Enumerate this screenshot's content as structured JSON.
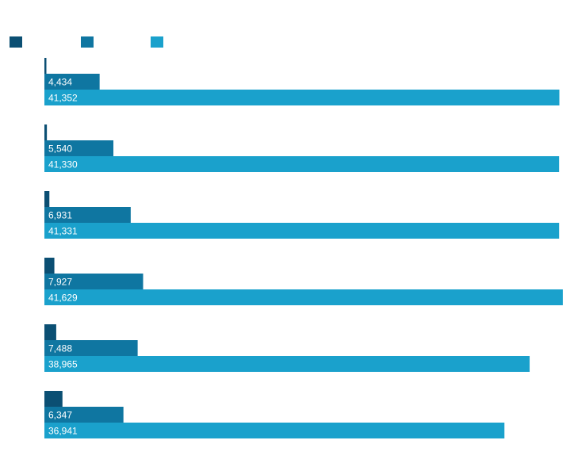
{
  "chart_data": {
    "type": "bar",
    "orientation": "horizontal",
    "title": "",
    "xlabel": "",
    "ylabel": "",
    "categories": [
      "",
      "",
      "",
      "",
      "",
      ""
    ],
    "series": [
      {
        "color": "#0b4f73",
        "values": [
          150,
          200,
          400,
          800,
          950,
          1450
        ]
      },
      {
        "color": "#0f76a1",
        "values": [
          4434,
          5540,
          6931,
          7927,
          7488,
          6347
        ]
      },
      {
        "color": "#1aa1cc",
        "values": [
          41352,
          41330,
          41331,
          41629,
          38965,
          36941
        ]
      }
    ],
    "labeled_series": [
      1,
      2
    ],
    "xlim": [
      0,
      41700
    ],
    "grid": false,
    "legend": {
      "position": "top-left"
    }
  }
}
